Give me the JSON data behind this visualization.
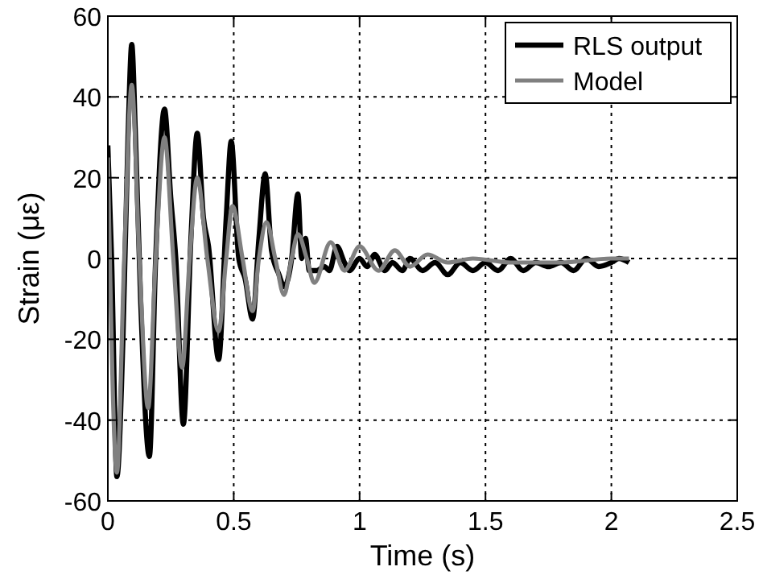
{
  "chart_data": {
    "type": "line",
    "xlabel": "Time (s)",
    "ylabel": "Strain (με)",
    "xlim": [
      0,
      2.5
    ],
    "xticks": [
      0,
      0.5,
      1,
      1.5,
      2,
      2.5
    ],
    "ylim": [
      -60,
      60
    ],
    "yticks": [
      -60,
      -40,
      -20,
      0,
      20,
      40,
      60
    ],
    "grid": true,
    "legend": "top right",
    "line_style": "solid",
    "series": [
      {
        "name": "RLS output",
        "color": "#000000",
        "x": [
          0,
          0.015,
          0.036,
          0.06,
          0.08,
          0.095,
          0.11,
          0.13,
          0.165,
          0.19,
          0.225,
          0.25,
          0.27,
          0.3,
          0.33,
          0.355,
          0.38,
          0.4,
          0.44,
          0.47,
          0.49,
          0.52,
          0.545,
          0.575,
          0.6,
          0.625,
          0.65,
          0.68,
          0.7,
          0.73,
          0.755,
          0.77,
          0.785,
          0.8,
          0.83,
          0.86,
          0.88,
          0.91,
          0.94,
          0.96,
          1,
          1.03,
          1.06,
          1.1,
          1.13,
          1.17,
          1.2,
          1.25,
          1.3,
          1.35,
          1.4,
          1.45,
          1.5,
          1.55,
          1.6,
          1.65,
          1.7,
          1.75,
          1.8,
          1.85,
          1.9,
          1.95,
          2,
          2.03,
          2.07
        ],
        "values": [
          28,
          0,
          -54,
          -20,
          30,
          53,
          30,
          -10,
          -49,
          0,
          37,
          15,
          0,
          -41,
          5,
          31,
          10,
          3,
          -25,
          10,
          29,
          0,
          -5,
          -15,
          5,
          21,
          2,
          -4,
          -7,
          0,
          16,
          0,
          5,
          -3,
          -3,
          -2,
          -3,
          3,
          -1,
          -3,
          0,
          -2,
          1,
          -3,
          -1,
          -3,
          0,
          -3,
          -1,
          -4,
          -1,
          -3,
          -1,
          -3,
          0,
          -3,
          -1,
          -2,
          -1,
          -3,
          0,
          -2,
          -1,
          0,
          -1
        ]
      },
      {
        "name": "Model",
        "color": "#808080",
        "x": [
          0,
          0.036,
          0.065,
          0.095,
          0.125,
          0.16,
          0.19,
          0.225,
          0.26,
          0.295,
          0.325,
          0.355,
          0.395,
          0.44,
          0.47,
          0.495,
          0.535,
          0.575,
          0.6,
          0.63,
          0.665,
          0.7,
          0.73,
          0.755,
          0.79,
          0.82,
          0.885,
          0.94,
          1,
          1.075,
          1.14,
          1.2,
          1.27,
          1.35,
          1.45,
          1.6,
          1.8,
          2,
          2.07
        ],
        "values": [
          25,
          -53,
          0,
          43,
          0,
          -37,
          0,
          30,
          0,
          -27,
          0,
          20,
          0,
          -18,
          0,
          13,
          0,
          -13,
          0,
          9,
          0,
          -9,
          0,
          6,
          0,
          -6,
          4,
          -3,
          3,
          -3,
          2,
          -2,
          1,
          -1,
          0,
          -1,
          -1,
          0,
          0
        ]
      }
    ]
  }
}
